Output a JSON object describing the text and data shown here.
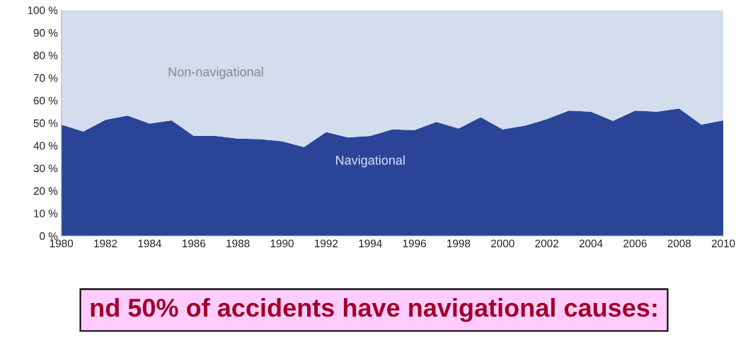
{
  "chart_data": {
    "type": "area",
    "stacked": true,
    "x": [
      1980,
      1981,
      1982,
      1983,
      1984,
      1985,
      1986,
      1987,
      1988,
      1989,
      1990,
      1991,
      1992,
      1993,
      1994,
      1995,
      1996,
      1997,
      1998,
      1999,
      2000,
      2001,
      2002,
      2003,
      2004,
      2005,
      2006,
      2007,
      2008,
      2009,
      2010
    ],
    "series": [
      {
        "name": "Navigational",
        "color": "#2a4598",
        "values": [
          49.3,
          46.2,
          51.4,
          53.3,
          49.8,
          51.2,
          44.3,
          44.3,
          43.1,
          42.9,
          41.9,
          39.3,
          46.0,
          43.6,
          44.3,
          47.2,
          46.9,
          50.5,
          47.6,
          52.6,
          47.2,
          48.8,
          51.7,
          55.5,
          55.0,
          50.9,
          55.5,
          55.0,
          56.4,
          49.3,
          51.2
        ]
      },
      {
        "name": "Non-navigational",
        "color": "#d3dded",
        "values": [
          50.7,
          53.8,
          48.6,
          46.7,
          50.2,
          48.8,
          55.7,
          55.7,
          56.9,
          57.1,
          58.1,
          60.7,
          54.0,
          56.4,
          55.7,
          52.8,
          53.1,
          49.5,
          52.4,
          47.4,
          52.8,
          51.2,
          48.3,
          44.5,
          45.0,
          49.1,
          44.5,
          45.0,
          43.6,
          50.7,
          48.8
        ]
      }
    ],
    "xlim": [
      1980,
      2010
    ],
    "xticks": [
      1980,
      1982,
      1984,
      1986,
      1988,
      1990,
      1992,
      1994,
      1996,
      1998,
      2000,
      2002,
      2004,
      2006,
      2008,
      2010
    ],
    "ylim": [
      0,
      100
    ],
    "yticks": [
      {
        "value": 0,
        "label": "0 %"
      },
      {
        "value": 10,
        "label": "10 %"
      },
      {
        "value": 20,
        "label": "20 %"
      },
      {
        "value": 30,
        "label": "30 %"
      },
      {
        "value": 40,
        "label": "40 %"
      },
      {
        "value": 50,
        "label": "50 %"
      },
      {
        "value": 60,
        "label": "60 %"
      },
      {
        "value": 70,
        "label": "70 %"
      },
      {
        "value": 80,
        "label": "80 %"
      },
      {
        "value": 90,
        "label": "90 %"
      },
      {
        "value": 100,
        "label": "100 %"
      }
    ],
    "annotations": [
      "nd 50% of accidents have navigational causes:"
    ],
    "grid": false,
    "legend": false
  }
}
